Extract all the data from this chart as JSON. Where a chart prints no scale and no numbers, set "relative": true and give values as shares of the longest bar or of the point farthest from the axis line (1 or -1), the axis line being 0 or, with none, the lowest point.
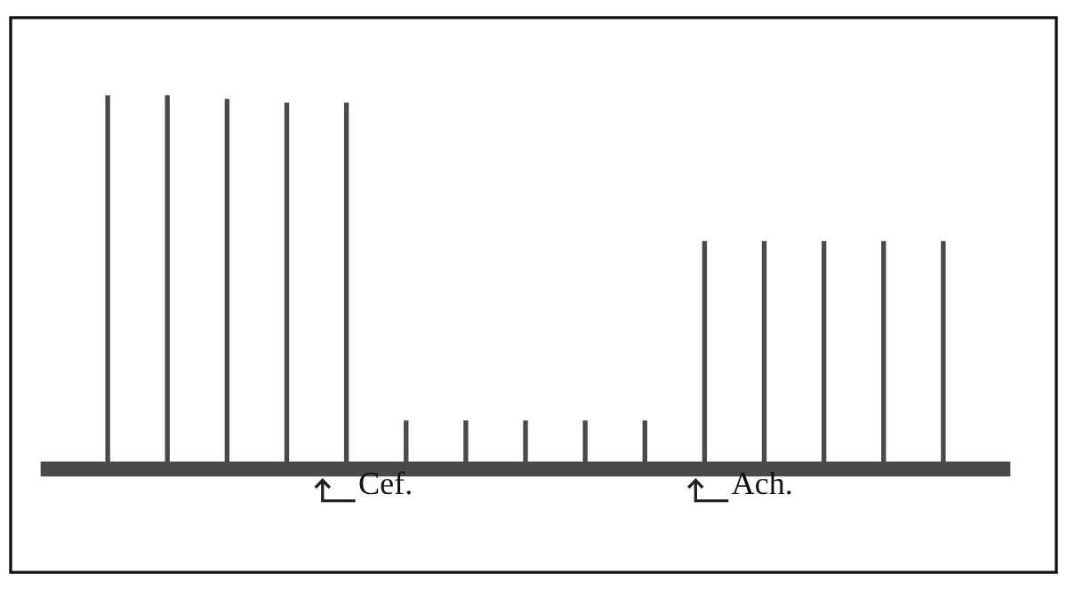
{
  "chart_data": {
    "type": "bar",
    "relative": true,
    "categories": [
      null,
      null,
      null,
      null,
      null,
      null,
      null,
      null,
      null,
      null,
      null,
      null,
      null,
      null,
      null
    ],
    "values": [
      1.0,
      1.0,
      0.99,
      0.98,
      0.98,
      0.13,
      0.13,
      0.13,
      0.13,
      0.13,
      0.61,
      0.61,
      0.61,
      0.61,
      0.61
    ],
    "color": "#4a4a4a",
    "annotations": [
      "Cef.",
      "Ach."
    ],
    "grid": false,
    "legend": false
  }
}
